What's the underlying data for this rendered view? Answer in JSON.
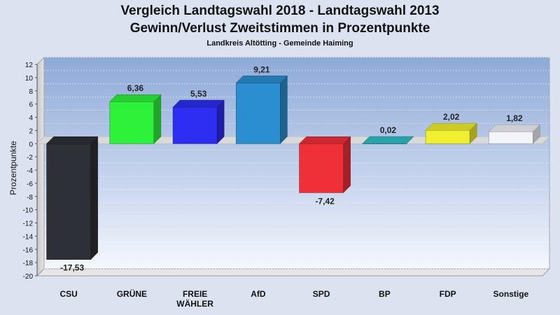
{
  "chart_data": {
    "type": "bar",
    "title_line1": "Vergleich Landtagswahl 2018 - Landtagswahl 2013",
    "title_line2": "Gewinn/Verlust Zweitstimmen in Prozentpunkte",
    "subtitle": "Landkreis Altötting - Gemeinde Haiming",
    "ylabel": "Prozentpunkte",
    "xlabel": "",
    "ylim": [
      -20,
      12
    ],
    "yticks": [
      "12",
      "10",
      "8",
      "6",
      "4",
      "2",
      "0",
      "-2",
      "-4",
      "-6",
      "-8",
      "-10",
      "-12",
      "-14",
      "-16",
      "-18",
      "-20"
    ],
    "grid": true,
    "categories": [
      {
        "lines": [
          "CSU"
        ]
      },
      {
        "lines": [
          "GRÜNE"
        ]
      },
      {
        "lines": [
          "FREIE",
          "WÄHLER"
        ]
      },
      {
        "lines": [
          "AfD"
        ]
      },
      {
        "lines": [
          "SPD"
        ]
      },
      {
        "lines": [
          "BP"
        ]
      },
      {
        "lines": [
          "FDP"
        ]
      },
      {
        "lines": [
          "Sonstige"
        ]
      }
    ],
    "values": [
      -17.53,
      6.36,
      5.53,
      9.21,
      -7.42,
      0.02,
      2.02,
      1.82
    ],
    "value_labels": [
      "-17,53",
      "6,36",
      "5,53",
      "9,21",
      "-7,42",
      "0,02",
      "2,02",
      "1,82"
    ],
    "colors": [
      "#2d3036",
      "#2ef23a",
      "#2e2ef2",
      "#2a8ed0",
      "#ef3038",
      "#30c0c8",
      "#f0f030",
      "#f2f4f8"
    ]
  }
}
